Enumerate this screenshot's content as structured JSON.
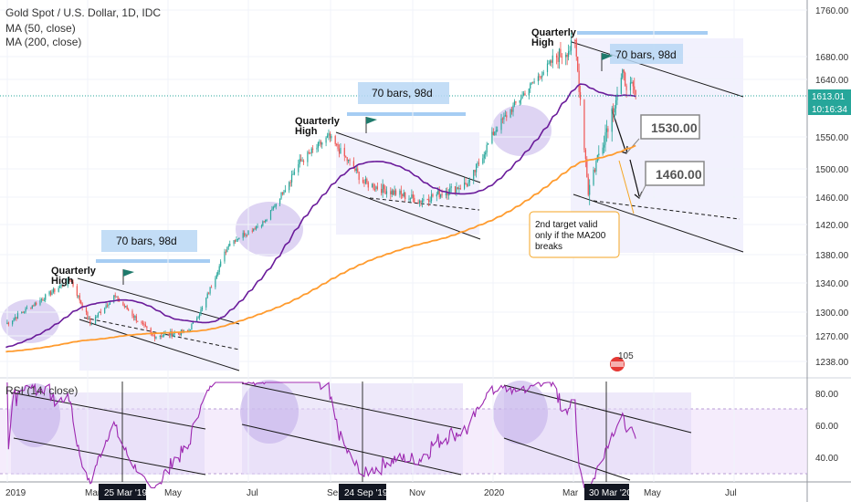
{
  "chart_data": {
    "type": "line",
    "title": "Gold Spot / U.S. Dollar, 1D, IDC",
    "legend": [
      "MA (50, close)",
      "MA (200, close)"
    ],
    "colors": {
      "up": "#26a69a",
      "down": "#ef5350",
      "ma50": "#6a1b9a",
      "ma200": "#ff9b2e",
      "rsi": "#9c27b0",
      "channel": "#1a1a1a",
      "ellipse": "#b39ddb",
      "note_border": "#f5a623",
      "price_line": "#26a69a"
    },
    "y_axis": {
      "ticks": [
        "1760.00",
        "1680.00",
        "1640.00",
        "1550.00",
        "1500.00",
        "1460.00",
        "1420.00",
        "1380.00",
        "1340.00",
        "1300.00",
        "1270.00",
        "1238.00"
      ]
    },
    "price_labels": [
      "1613.01",
      "10:16:34"
    ],
    "x_axis": {
      "ticks": [
        "2019",
        "Mar",
        "May",
        "Jul",
        "Sep",
        "Nov",
        "2020",
        "Mar",
        "May",
        "Jul"
      ],
      "highlights": [
        "25 Mar '19",
        "24 Sep '19",
        "30 Mar '20"
      ]
    },
    "annotations": {
      "quarterly_high": [
        "Quarterly",
        "High"
      ],
      "bars_label": "70 bars, 98d",
      "targets": [
        "1530.00",
        "1460.00"
      ],
      "note": [
        "2nd target valid",
        "only if the MA200",
        "breaks"
      ],
      "badge": "105"
    },
    "price_series": [
      {
        "x": "2019-01-02",
        "close": 1285
      },
      {
        "x": "2019-01-31",
        "close": 1320
      },
      {
        "x": "2019-02-20",
        "close": 1345
      },
      {
        "x": "2019-03-07",
        "close": 1285
      },
      {
        "x": "2019-03-25",
        "close": 1322
      },
      {
        "x": "2019-04-23",
        "close": 1270
      },
      {
        "x": "2019-05-20",
        "close": 1275
      },
      {
        "x": "2019-05-31",
        "close": 1305
      },
      {
        "x": "2019-06-20",
        "close": 1395
      },
      {
        "x": "2019-07-18",
        "close": 1425
      },
      {
        "x": "2019-08-13",
        "close": 1510
      },
      {
        "x": "2019-09-04",
        "close": 1550
      },
      {
        "x": "2019-10-01",
        "close": 1480
      },
      {
        "x": "2019-11-12",
        "close": 1455
      },
      {
        "x": "2019-12-20",
        "close": 1480
      },
      {
        "x": "2020-01-08",
        "close": 1560
      },
      {
        "x": "2020-02-24",
        "close": 1680
      },
      {
        "x": "2020-03-09",
        "close": 1700
      },
      {
        "x": "2020-03-19",
        "close": 1470
      },
      {
        "x": "2020-04-14",
        "close": 1645
      },
      {
        "x": "2020-04-24",
        "close": 1613
      }
    ],
    "rsi_axis": {
      "title": "RSI (14, close)",
      "ticks": [
        "80.00",
        "60.00",
        "40.00"
      ]
    }
  }
}
